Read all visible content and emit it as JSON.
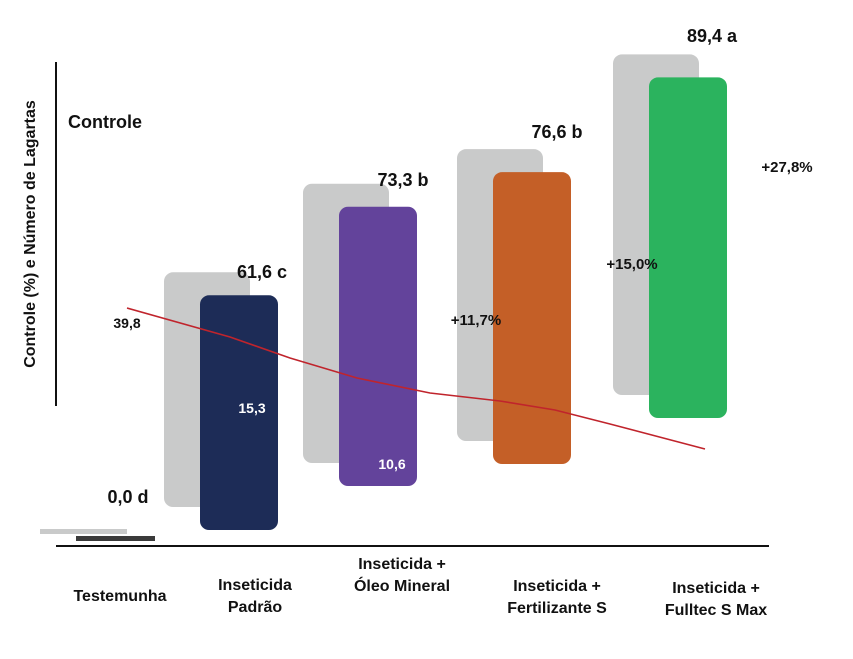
{
  "chart_data": {
    "type": "bar",
    "ylabel": "Controle (%) e Número de Lagartas",
    "legend_label": "Controle",
    "categories": [
      [
        "Testemunha"
      ],
      [
        "Inseticida",
        "Padrão"
      ],
      [
        "Inseticida +",
        "Óleo Mineral"
      ],
      [
        "Inseticida +",
        "Fertilizante S"
      ],
      [
        "Inseticida +",
        "Fulltec S Max"
      ]
    ],
    "controle": [
      0.0,
      61.6,
      73.3,
      76.6,
      89.4
    ],
    "controle_labels": [
      "0,0 d",
      "61,6 c",
      "73,3 b",
      "76,6 b",
      "89,4 a"
    ],
    "gain_labels": [
      "",
      "",
      "+11,7%",
      "+15,0%",
      "+27,8%"
    ],
    "lagartas": [
      39.8,
      15.3,
      10.6,
      null,
      null
    ],
    "lagartas_labels": [
      "39,8",
      "15,3",
      "10,6",
      "",
      ""
    ],
    "colors": [
      "#3a3a3a",
      "#1d2c57",
      "#63439b",
      "#c45f27",
      "#2bb35e"
    ],
    "shadow_color": "#c9caca",
    "line_color": "#c0242c"
  }
}
